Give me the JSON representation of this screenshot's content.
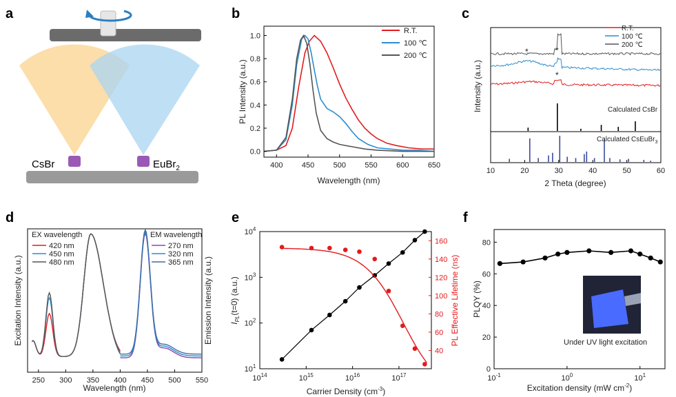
{
  "panels": {
    "a": {
      "label": "a",
      "source_left": "CsBr",
      "source_right_main": "EuBr",
      "source_right_sub": "2"
    },
    "b": {
      "label": "b"
    },
    "c": {
      "label": "c"
    },
    "d": {
      "label": "d"
    },
    "e": {
      "label": "e"
    },
    "f": {
      "label": "f"
    }
  },
  "colors": {
    "red": "#e31a1c",
    "blue": "#2b8cce",
    "gray": "#555555",
    "purple": "#8e44ad",
    "steel": "#3b6ea5"
  },
  "chart_data": [
    {
      "id": "b",
      "type": "line",
      "xlabel": "Wavelength (nm)",
      "ylabel": "PL Intensity (a.u.)",
      "xlim": [
        380,
        650
      ],
      "ylim": [
        -0.05,
        1.08
      ],
      "xticks": [
        "400",
        "450",
        "500",
        "550",
        "600",
        "650"
      ],
      "yticks": [
        "0.0",
        "0.2",
        "0.4",
        "0.6",
        "0.8",
        "1.0"
      ],
      "legend_position": "top-right",
      "series": [
        {
          "name": "R.T.",
          "color": "#e31a1c",
          "x": [
            380,
            400,
            415,
            425,
            435,
            445,
            452,
            460,
            470,
            480,
            490,
            500,
            510,
            520,
            530,
            540,
            550,
            560,
            575,
            590,
            610,
            630,
            650
          ],
          "y": [
            0.0,
            0.01,
            0.05,
            0.2,
            0.55,
            0.85,
            0.95,
            1.0,
            0.95,
            0.85,
            0.72,
            0.58,
            0.46,
            0.36,
            0.27,
            0.2,
            0.15,
            0.11,
            0.07,
            0.05,
            0.03,
            0.02,
            0.02
          ]
        },
        {
          "name": "100 ℃",
          "color": "#2b8cce",
          "x": [
            380,
            400,
            415,
            425,
            432,
            440,
            445,
            450,
            455,
            460,
            465,
            470,
            480,
            490,
            500,
            510,
            520,
            530,
            545,
            560,
            580,
            600,
            620,
            650
          ],
          "y": [
            0.0,
            0.01,
            0.1,
            0.4,
            0.75,
            0.97,
            1.0,
            0.97,
            0.85,
            0.7,
            0.56,
            0.45,
            0.37,
            0.34,
            0.3,
            0.24,
            0.17,
            0.11,
            0.06,
            0.03,
            0.02,
            0.01,
            0.01,
            0.0
          ]
        },
        {
          "name": "200 ℃",
          "color": "#555555",
          "x": [
            380,
            400,
            415,
            425,
            432,
            438,
            443,
            448,
            453,
            458,
            463,
            470,
            480,
            490,
            500,
            520,
            540,
            560,
            600,
            650
          ],
          "y": [
            0.0,
            0.01,
            0.12,
            0.45,
            0.8,
            0.96,
            1.0,
            0.93,
            0.75,
            0.52,
            0.33,
            0.18,
            0.11,
            0.08,
            0.06,
            0.04,
            0.02,
            0.01,
            0.0,
            0.0
          ]
        }
      ]
    },
    {
      "id": "c",
      "type": "line",
      "xlabel": "2 Theta (degree)",
      "ylabel": "Intensity (a.u.)",
      "xlim": [
        10,
        60
      ],
      "xticks": [
        "10",
        "20",
        "30",
        "40",
        "50",
        "60"
      ],
      "legend_position": "top-right",
      "series": [
        {
          "name": "R.T.",
          "color": "#e31a1c"
        },
        {
          "name": "100 ℃",
          "color": "#2b8cce"
        },
        {
          "name": "200 ℃",
          "color": "#555555"
        }
      ],
      "reference_patterns": [
        {
          "name": "Calculated CsBr",
          "color": "#000000",
          "peaks_x": [
            21.0,
            29.6,
            36.5,
            42.5,
            47.5,
            52.5
          ],
          "peaks_rel": [
            0.12,
            1.0,
            0.08,
            0.22,
            0.15,
            0.35
          ]
        },
        {
          "name": "Calculated CsEuBr",
          "name_sub": "3",
          "color": "#3b4a9e",
          "peaks_x": [
            15.5,
            21.5,
            24.0,
            27.0,
            28.2,
            30.3,
            32.5,
            35.0,
            37.5,
            38.2,
            40.5,
            43.4,
            45.0,
            48.0,
            50.5,
            55.0,
            57.0
          ],
          "peaks_rel": [
            0.12,
            0.9,
            0.15,
            0.25,
            0.35,
            1.0,
            0.2,
            0.15,
            0.3,
            0.4,
            0.15,
            0.85,
            0.15,
            0.1,
            0.12,
            0.08,
            0.05
          ]
        }
      ],
      "annotations": [
        "*",
        "*",
        "*"
      ]
    },
    {
      "id": "d",
      "type": "line",
      "xlabel": "Wavelength (nm)",
      "ylabel_left": "Excitation Intensity (a.u.)",
      "ylabel_right": "Emission Intensity (a.u.)",
      "xlim": [
        230,
        550
      ],
      "xticks": [
        "250",
        "300",
        "350",
        "400",
        "450",
        "500",
        "550"
      ],
      "legend_left_title": "EX wavelength",
      "legend_right_title": "EM wavelength",
      "excitation_series": [
        {
          "name": "420 nm",
          "color": "#e31a1c"
        },
        {
          "name": "450 nm",
          "color": "#2b8cce"
        },
        {
          "name": "480 nm",
          "color": "#555555"
        }
      ],
      "emission_series": [
        {
          "name": "270 nm",
          "color": "#8e44ad"
        },
        {
          "name": "320 nm",
          "color": "#2b8cce"
        },
        {
          "name": "365 nm",
          "color": "#3b6ea5"
        }
      ]
    },
    {
      "id": "e",
      "type": "scatter",
      "xlabel_main": "Carrier Density (cm",
      "xlabel_sup": "-3",
      "xlabel_end": ")",
      "ylabel_left_main": "I",
      "ylabel_left_sub": "PL",
      "ylabel_left_paren": "(t=0)",
      "ylabel_left_unit": " (a.u.)",
      "ylabel_right": "PL Effective Lifetime (ns)",
      "xscale": "log",
      "yscale_left": "log",
      "xlim": [
        100000000000000.0,
        5e+17
      ],
      "ylim_left": [
        10,
        10000
      ],
      "ylim_right": [
        20,
        170
      ],
      "xticks_base": "10",
      "xticks_exp": [
        "14",
        "15",
        "16",
        "17"
      ],
      "yticks_left_base": "10",
      "yticks_left_exp": [
        "1",
        "2",
        "3",
        "4"
      ],
      "yticks_right": [
        "40",
        "60",
        "80",
        "100",
        "120",
        "140",
        "160"
      ],
      "series": [
        {
          "name": "I_PL",
          "color": "#000000",
          "x": [
            300000000000000.0,
            1300000000000000.0,
            3200000000000000.0,
            7000000000000000.0,
            1.4e+16,
            3e+16,
            6e+16,
            1.2e+17,
            2.2e+17,
            3.6e+17
          ],
          "y": [
            16,
            70,
            150,
            300,
            600,
            1100,
            2000,
            3500,
            6500,
            10000
          ]
        },
        {
          "name": "Lifetime",
          "color": "#e31a1c",
          "x": [
            300000000000000.0,
            1300000000000000.0,
            3200000000000000.0,
            7000000000000000.0,
            1.4e+16,
            3e+16,
            6e+16,
            1.2e+17,
            2.2e+17,
            3.6e+17
          ],
          "y": [
            153,
            152,
            152,
            150,
            148,
            140,
            105,
            67,
            42,
            25
          ]
        }
      ]
    },
    {
      "id": "f",
      "type": "line",
      "xlabel": "Excitation density (mW cm",
      "xlabel_sup": "-2",
      "xlabel_end": ")",
      "ylabel": "PLQY (%)",
      "xscale": "log",
      "xlim": [
        0.1,
        22
      ],
      "ylim": [
        0,
        88
      ],
      "yticks": [
        "0",
        "20",
        "40",
        "60",
        "80"
      ],
      "xticks_labels": [
        "10",
        "10",
        "10"
      ],
      "xticks_exp": [
        "-1",
        "0",
        "1"
      ],
      "inset_caption": "Under UV light excitation",
      "series": [
        {
          "name": "PLQY",
          "color": "#000000",
          "x": [
            0.12,
            0.25,
            0.5,
            0.75,
            1.0,
            2.0,
            4.0,
            7.5,
            10,
            14,
            19
          ],
          "y": [
            66.5,
            67.5,
            70,
            72.5,
            73.5,
            74.5,
            73.5,
            74.5,
            72.5,
            70,
            67.5
          ]
        }
      ]
    }
  ]
}
